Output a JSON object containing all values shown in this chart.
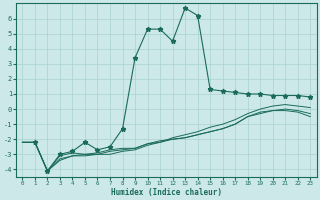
{
  "xlabel": "Humidex (Indice chaleur)",
  "bg_color": "#cce8e8",
  "line_color": "#1a6b5a",
  "grid_color": "#aad0d0",
  "xlim": [
    -0.5,
    23.5
  ],
  "ylim": [
    -4.5,
    7.0
  ],
  "yticks": [
    -4,
    -3,
    -2,
    -1,
    0,
    1,
    2,
    3,
    4,
    5,
    6
  ],
  "xticks": [
    0,
    1,
    2,
    3,
    4,
    5,
    6,
    7,
    8,
    9,
    10,
    11,
    12,
    13,
    14,
    15,
    16,
    17,
    18,
    19,
    20,
    21,
    22,
    23
  ],
  "series1_x": [
    1,
    2,
    3,
    4,
    5,
    6,
    7,
    8,
    9,
    10,
    11,
    12,
    13,
    14,
    15,
    16,
    17,
    18,
    19,
    20,
    21,
    22,
    23
  ],
  "series1_y": [
    -2.2,
    -4.1,
    -3.0,
    -2.8,
    -2.2,
    -2.7,
    -2.5,
    -1.3,
    3.4,
    5.3,
    5.3,
    4.5,
    6.7,
    6.2,
    1.3,
    1.2,
    1.1,
    1.0,
    1.0,
    0.9,
    0.9,
    0.9,
    0.8
  ],
  "series2_x": [
    0,
    1,
    2,
    3,
    4,
    5,
    6,
    7,
    8,
    9,
    10,
    11,
    12,
    13,
    14,
    15,
    16,
    17,
    18,
    19,
    20,
    21,
    22,
    23
  ],
  "series2_y": [
    -2.2,
    -2.2,
    -4.1,
    -3.1,
    -2.9,
    -3.0,
    -3.0,
    -2.8,
    -2.7,
    -2.6,
    -2.3,
    -2.2,
    -1.9,
    -1.7,
    -1.5,
    -1.2,
    -1.0,
    -0.7,
    -0.3,
    0.0,
    0.2,
    0.3,
    0.2,
    0.1
  ],
  "series3_x": [
    0,
    1,
    2,
    3,
    4,
    5,
    6,
    7,
    8,
    9,
    10,
    11,
    12,
    13,
    14,
    15,
    16,
    17,
    18,
    19,
    20,
    21,
    22,
    23
  ],
  "series3_y": [
    -2.2,
    -2.2,
    -4.1,
    -3.3,
    -3.1,
    -3.1,
    -3.0,
    -3.0,
    -2.8,
    -2.7,
    -2.4,
    -2.2,
    -2.0,
    -1.9,
    -1.7,
    -1.5,
    -1.3,
    -1.0,
    -0.5,
    -0.2,
    -0.1,
    0.0,
    -0.1,
    -0.3
  ],
  "series4_x": [
    0,
    1,
    2,
    3,
    4,
    5,
    6,
    7,
    8,
    9,
    10,
    11,
    12,
    13,
    14,
    15,
    16,
    17,
    18,
    19,
    20,
    21,
    22,
    23
  ],
  "series4_y": [
    -2.2,
    -2.2,
    -4.1,
    -3.4,
    -3.1,
    -3.0,
    -2.9,
    -2.7,
    -2.6,
    -2.6,
    -2.3,
    -2.1,
    -2.0,
    -1.9,
    -1.7,
    -1.5,
    -1.3,
    -1.0,
    -0.5,
    -0.3,
    -0.1,
    -0.1,
    -0.2,
    -0.5
  ]
}
